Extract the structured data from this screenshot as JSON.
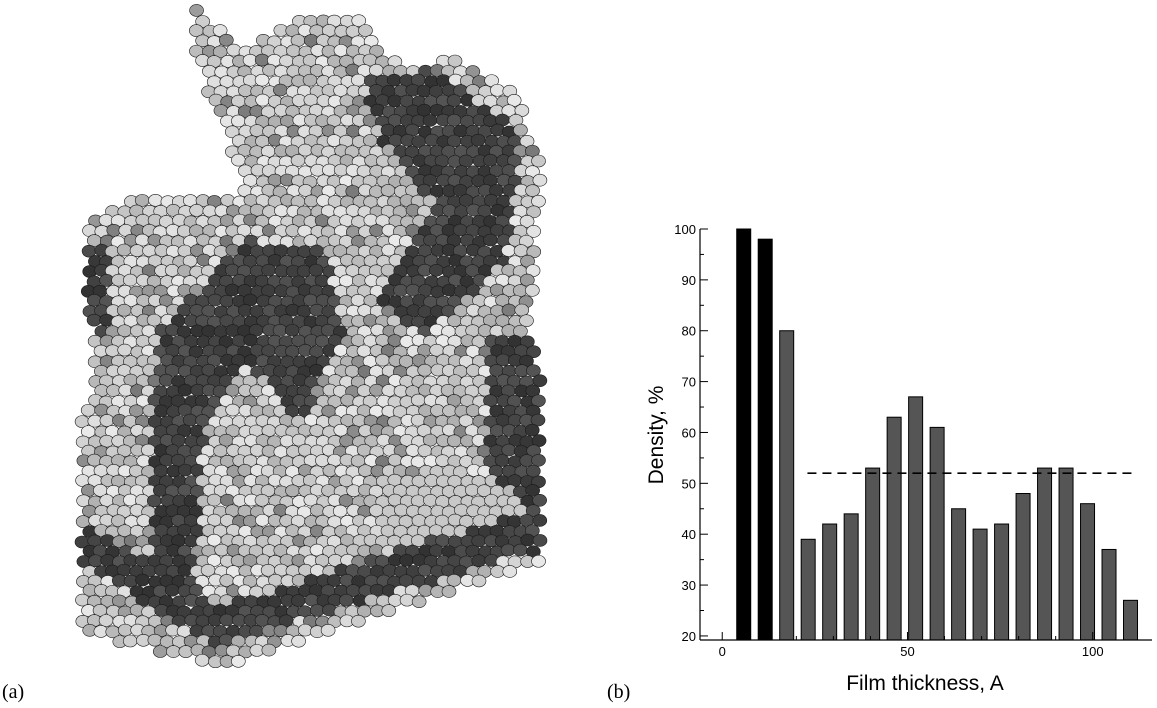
{
  "panels": {
    "a": "(a)",
    "b": "(b)"
  },
  "chart_data": {
    "type": "bar",
    "x_label": "Film thickness, A",
    "y_label": "Density, %",
    "x": [
      5.8,
      11.6,
      17.4,
      23.2,
      29.0,
      34.8,
      40.6,
      46.4,
      52.2,
      58.0,
      63.8,
      69.6,
      75.4,
      81.2,
      87.0,
      92.8,
      98.6,
      104.4,
      110.2
    ],
    "values": [
      100,
      98,
      80,
      39,
      42,
      44,
      53,
      63,
      67,
      61,
      45,
      41,
      42,
      48,
      53,
      53,
      46,
      37,
      27
    ],
    "colors": [
      "#000000",
      "#000000",
      "#555555",
      "#555555",
      "#555555",
      "#555555",
      "#555555",
      "#555555",
      "#555555",
      "#555555",
      "#555555",
      "#555555",
      "#555555",
      "#555555",
      "#555555",
      "#555555",
      "#555555",
      "#555555",
      "#555555"
    ],
    "xlim": [
      -6,
      116
    ],
    "ylim": [
      19.2,
      100
    ],
    "xticks": [
      0,
      50,
      100
    ],
    "yticks": [
      20,
      30,
      40,
      50,
      60,
      70,
      80,
      90,
      100
    ],
    "reference_line": {
      "value": 52,
      "x": [
        23,
        112
      ]
    }
  }
}
